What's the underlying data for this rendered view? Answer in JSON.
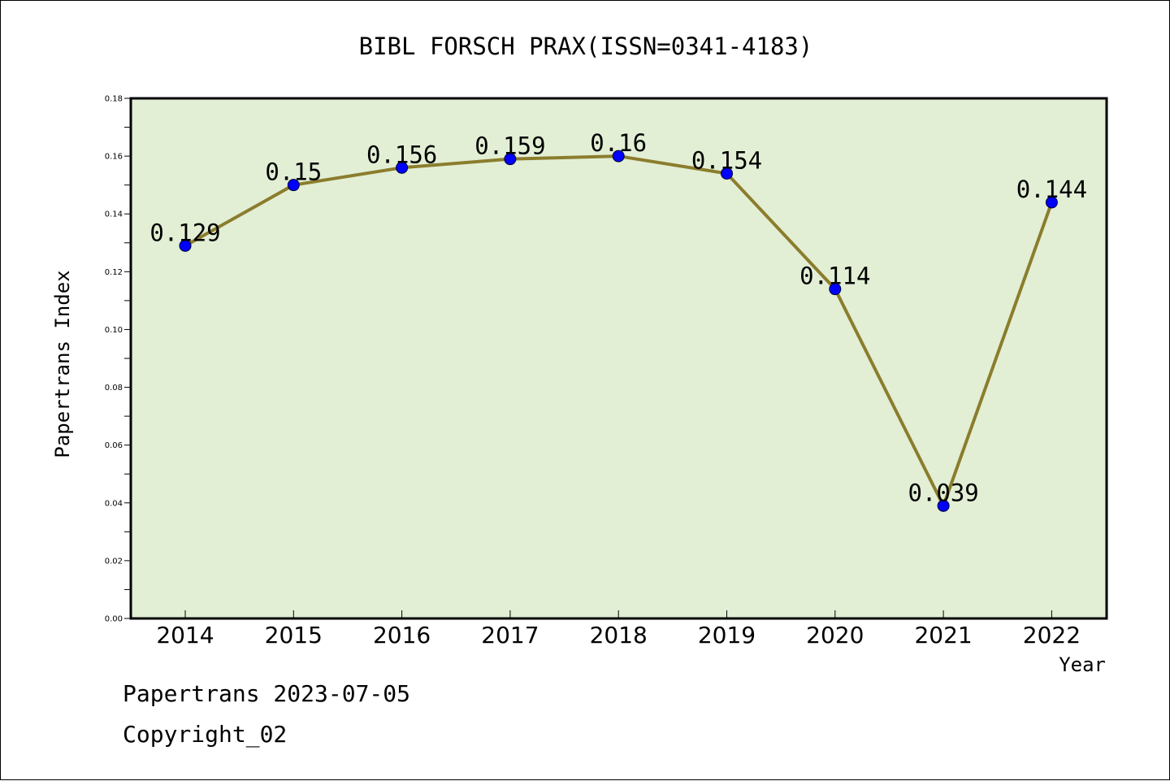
{
  "chart_data": {
    "type": "line",
    "title": "BIBL FORSCH PRAX(ISSN=0341-4183)",
    "xlabel": "Year",
    "ylabel": "Papertrans Index",
    "categories": [
      "2014",
      "2015",
      "2016",
      "2017",
      "2018",
      "2019",
      "2020",
      "2021",
      "2022"
    ],
    "series": [
      {
        "values": [
          0.129,
          0.15,
          0.156,
          0.159,
          0.16,
          0.154,
          0.114,
          0.039,
          0.144
        ],
        "labels": [
          "0.129",
          "0.15",
          "0.156",
          "0.159",
          "0.16",
          "0.154",
          "0.114",
          "0.039",
          "0.144"
        ]
      }
    ],
    "ylim": [
      0,
      0.18
    ],
    "yticks": [
      "0.00",
      "0.02",
      "0.04",
      "0.06",
      "0.08",
      "0.10",
      "0.12",
      "0.14",
      "0.16",
      "0.18"
    ],
    "grid": false,
    "colors": {
      "plot_background": "#e2efd5",
      "line": "#8b7d2d",
      "marker": "#0000ff"
    }
  },
  "footer": {
    "line1": "Papertrans 2023-07-05",
    "line2": "Copyright_02"
  }
}
